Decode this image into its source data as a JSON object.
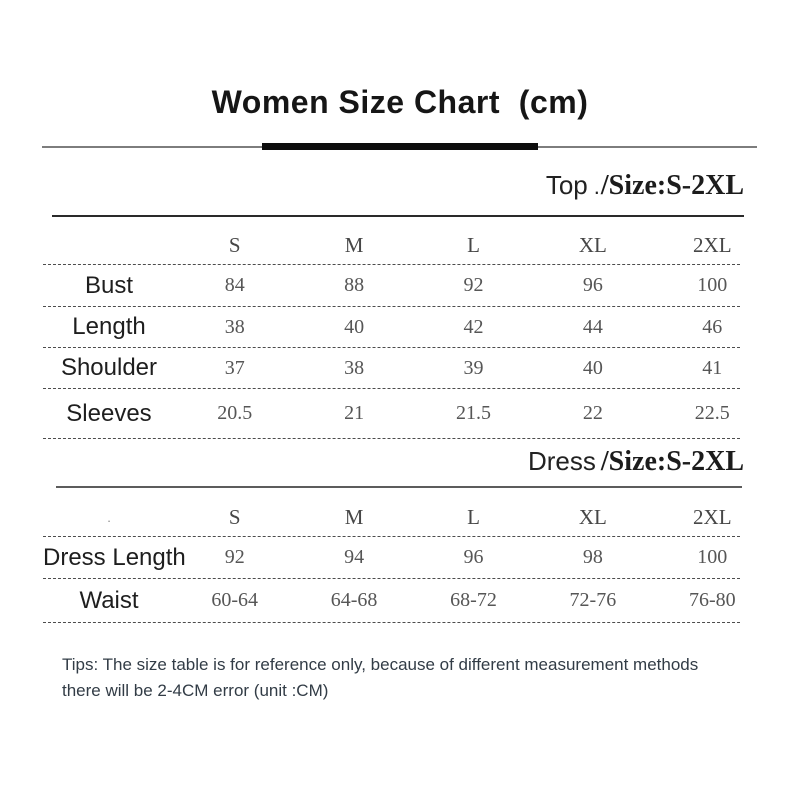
{
  "title": {
    "text": "Women Size Chart  (cm)"
  },
  "sections": [
    {
      "id": "top",
      "heading": {
        "prefix": "Top",
        "separator": ".",
        "size_range": "/Size:S-2XL"
      },
      "columns": [
        "S",
        "M",
        "L",
        "XL",
        "2XL"
      ],
      "rows": [
        {
          "label": "Bust",
          "values": [
            "84",
            "88",
            "92",
            "96",
            "100"
          ]
        },
        {
          "label": "Length",
          "values": [
            "38",
            "40",
            "42",
            "44",
            "46"
          ]
        },
        {
          "label": "Shoulder",
          "values": [
            "37",
            "38",
            "39",
            "40",
            "41"
          ]
        },
        {
          "label": "Sleeves",
          "values": [
            "20.5",
            "21",
            "21.5",
            "22",
            "22.5"
          ]
        }
      ]
    },
    {
      "id": "dress",
      "heading": {
        "prefix": "Dress",
        "separator": "",
        "size_range": "/Size:S-2XL"
      },
      "corner_mark": ".",
      "columns": [
        "S",
        "M",
        "L",
        "XL",
        "2XL"
      ],
      "rows": [
        {
          "label": "Dress Length",
          "values": [
            "92",
            "94",
            "96",
            "98",
            "100"
          ]
        },
        {
          "label": "Waist",
          "values": [
            "60-64",
            "64-68",
            "68-72",
            "72-76",
            "76-80"
          ]
        }
      ]
    }
  ],
  "tips": {
    "line1": "Tips: The size table is for reference only, because of different measurement methods",
    "line2": "there will be 2-4CM error (unit :CM)"
  },
  "colors": {
    "background": "#ffffff",
    "title_text": "#161616",
    "rule_thick": "#0d0d0d",
    "rule_thin": "#7d7d7d",
    "label_text": "#1e1e1e",
    "value_text": "#565656",
    "tips_text": "#323c46"
  },
  "chart_data": [
    {
      "type": "table",
      "title": "Top /Size:S-2XL",
      "columns": [
        "",
        "S",
        "M",
        "L",
        "XL",
        "2XL"
      ],
      "rows": [
        [
          "Bust",
          84,
          88,
          92,
          96,
          100
        ],
        [
          "Length",
          38,
          40,
          42,
          44,
          46
        ],
        [
          "Shoulder",
          37,
          38,
          39,
          40,
          41
        ],
        [
          "Sleeves",
          20.5,
          21,
          21.5,
          22,
          22.5
        ]
      ]
    },
    {
      "type": "table",
      "title": "Dress /Size:S-2XL",
      "columns": [
        "",
        "S",
        "M",
        "L",
        "XL",
        "2XL"
      ],
      "rows": [
        [
          "Dress Length",
          92,
          94,
          96,
          98,
          100
        ],
        [
          "Waist",
          "60-64",
          "64-68",
          "68-72",
          "72-76",
          "76-80"
        ]
      ]
    }
  ]
}
